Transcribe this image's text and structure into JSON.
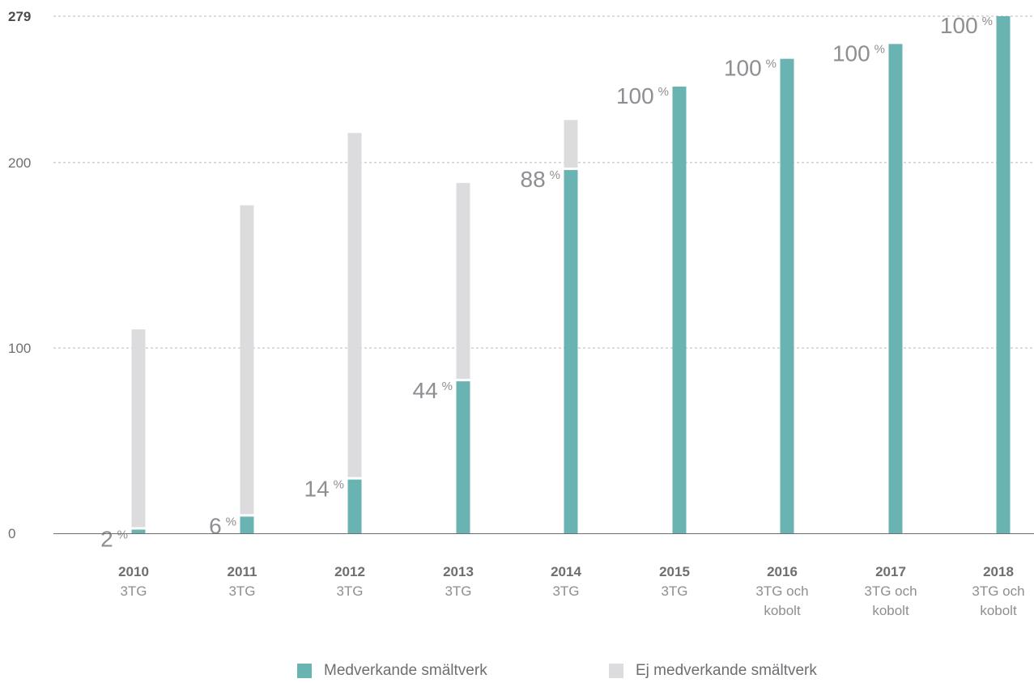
{
  "chart_data": {
    "type": "bar",
    "stacked": true,
    "categories": [
      "2010",
      "2011",
      "2012",
      "2013",
      "2014",
      "2015",
      "2016",
      "2017",
      "2018"
    ],
    "category_sublabels": [
      "3TG",
      "3TG",
      "3TG",
      "3TG",
      "3TG",
      "3TG",
      "3TG och kobolt",
      "3TG och kobolt",
      "3TG och kobolt"
    ],
    "series": [
      {
        "name": "Medverkande smältverk",
        "color": "#6ab3b3",
        "values": [
          2,
          9,
          29,
          82,
          196,
          241,
          256,
          264,
          279
        ]
      },
      {
        "name": "Ej medverkande smältverk",
        "color": "#dcdcde",
        "values": [
          108,
          168,
          187,
          107,
          27,
          0,
          0,
          0,
          0
        ]
      }
    ],
    "data_labels": [
      "2",
      "6",
      "14",
      "44",
      "88",
      "100",
      "100",
      "100",
      "100"
    ],
    "data_label_unit": "%",
    "yticks": [
      "0",
      "100",
      "200",
      "279"
    ],
    "ylim": [
      0,
      279
    ],
    "grid": true,
    "legend_position": "bottom"
  }
}
